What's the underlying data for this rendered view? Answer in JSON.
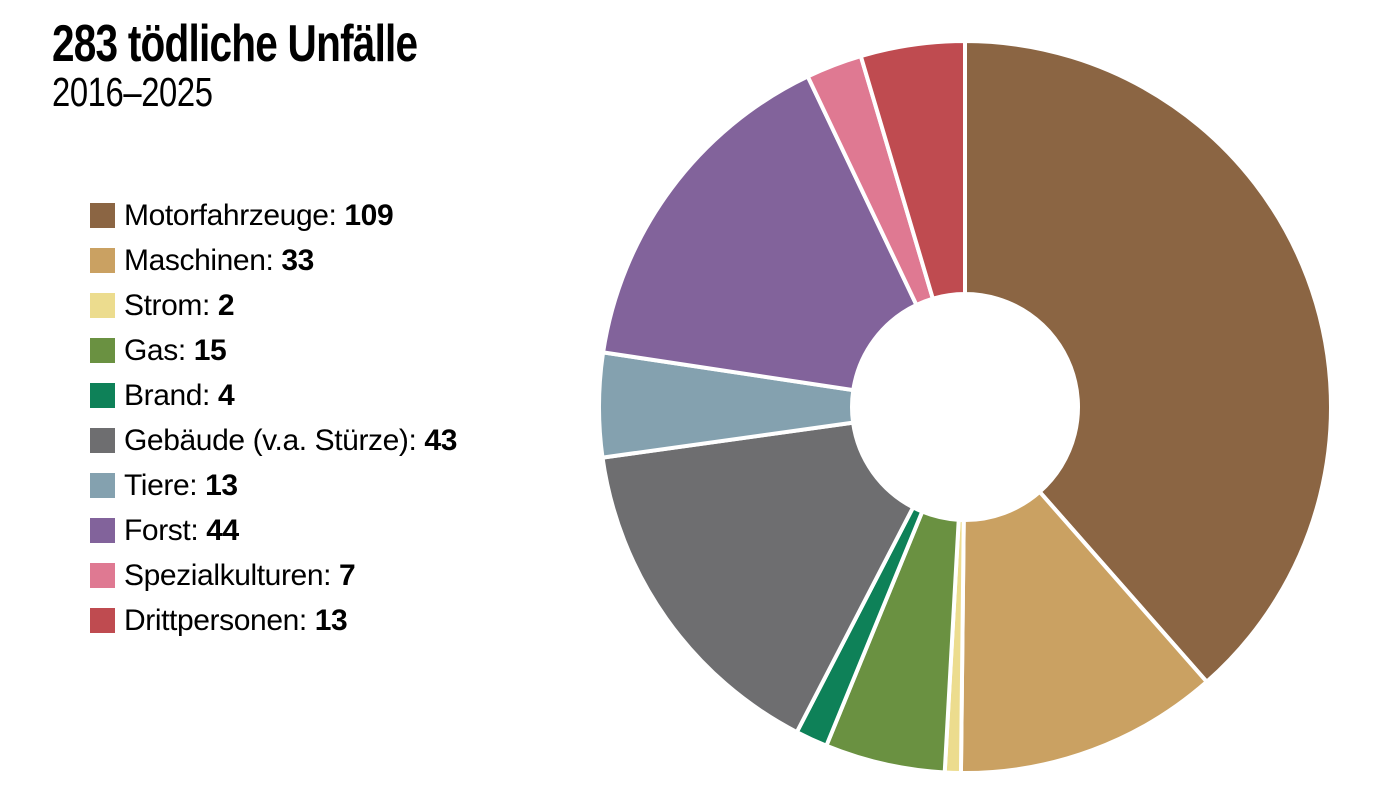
{
  "page": {
    "background": "#ffffff"
  },
  "chart_data": {
    "type": "pie",
    "variant": "donut",
    "title": "283 tödliche Unfälle",
    "subtitle": "2016–2025",
    "total": 283,
    "categories": [
      "Motorfahrzeuge",
      "Maschinen",
      "Strom",
      "Gas",
      "Brand",
      "Gebäude (v.a. Stürze)",
      "Tiere",
      "Forst",
      "Spezialkulturen",
      "Drittpersonen"
    ],
    "values": [
      109,
      33,
      2,
      15,
      4,
      43,
      13,
      44,
      7,
      13
    ],
    "colors": [
      "#8B6543",
      "#CAA162",
      "#ECDC8E",
      "#6A9141",
      "#0E8158",
      "#6E6E70",
      "#84A1AF",
      "#82639B",
      "#DF7992",
      "#BF4B50"
    ],
    "legend_position": "left",
    "legend_format": "{category}: {value}",
    "start_angle_deg": 0,
    "direction": "clockwise",
    "inner_radius_ratio": 0.31,
    "separator_color": "#ffffff"
  }
}
